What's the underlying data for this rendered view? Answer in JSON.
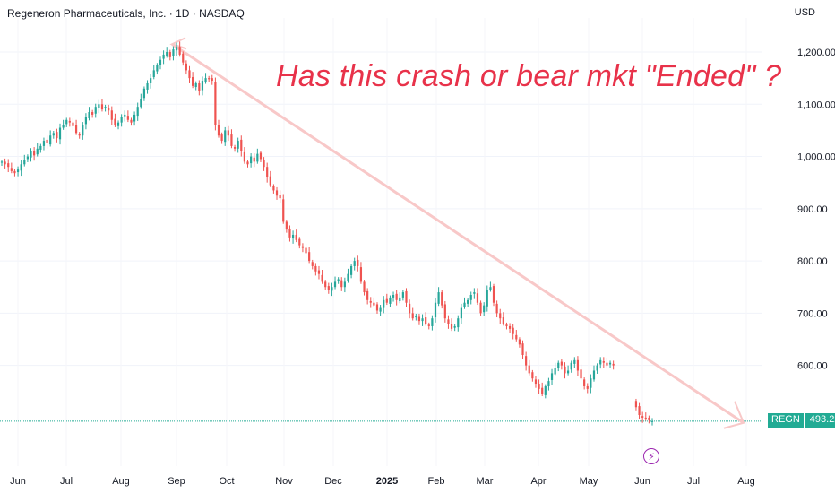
{
  "header": {
    "title": "Regeneron Pharmaceuticals, Inc. · 1D · NASDAQ"
  },
  "currency": "USD",
  "annotation": "Has this crash or bear mkt \"Ended\" ?",
  "ticker_badge": {
    "ticker": "REGN",
    "price": "493.22"
  },
  "event_icon": "flash-icon",
  "colors": {
    "up": "#26a69a",
    "down": "#ef5350",
    "annotation": "#e8324a",
    "trend": "#f8c8c8",
    "last_price": "#22ab94"
  },
  "chart_data": {
    "type": "candlestick",
    "title": "Regeneron Pharmaceuticals, Inc. · 1D · NASDAQ",
    "ylim": [
      465,
      1245
    ],
    "y_ticks": [
      600,
      700,
      800,
      900,
      1000,
      1100,
      1200
    ],
    "y_tick_labels": [
      "600.00",
      "700.00",
      "800.00",
      "900.00",
      "1,000.00",
      "1,100.00",
      "1,200.00"
    ],
    "x_tick_labels": [
      "Jun",
      "Jul",
      "Aug",
      "Sep",
      "Oct",
      "Nov",
      "Dec",
      "2025",
      "Feb",
      "Mar",
      "Apr",
      "May",
      "Jun",
      "Jul",
      "Aug"
    ],
    "grid": true,
    "last_price": 493.22,
    "trendline": [
      {
        "date": "2024-09-04",
        "price": 1215
      },
      {
        "date": "2025-08-15",
        "price": 490
      }
    ],
    "closes": [
      990,
      985,
      980,
      972,
      968,
      975,
      985,
      993,
      1000,
      1010,
      1002,
      1015,
      1020,
      1030,
      1025,
      1040,
      1045,
      1035,
      1055,
      1060,
      1070,
      1065,
      1058,
      1045,
      1040,
      1060,
      1075,
      1085,
      1080,
      1095,
      1100,
      1090,
      1095,
      1088,
      1070,
      1060,
      1065,
      1075,
      1080,
      1070,
      1065,
      1080,
      1095,
      1110,
      1130,
      1140,
      1150,
      1165,
      1175,
      1185,
      1195,
      1200,
      1190,
      1205,
      1210,
      1195,
      1180,
      1165,
      1150,
      1135,
      1140,
      1125,
      1145,
      1150,
      1148,
      1145,
      1060,
      1040,
      1030,
      1050,
      1040,
      1020,
      1015,
      1030,
      1010,
      990,
      985,
      1000,
      990,
      1005,
      995,
      980,
      960,
      945,
      935,
      925,
      920,
      875,
      860,
      845,
      850,
      840,
      830,
      825,
      815,
      800,
      790,
      780,
      775,
      760,
      750,
      745,
      750,
      760,
      765,
      750,
      760,
      775,
      790,
      800,
      790,
      760,
      740,
      725,
      720,
      715,
      705,
      710,
      725,
      720,
      730,
      735,
      725,
      730,
      740,
      720,
      700,
      690,
      695,
      685,
      690,
      680,
      675,
      690,
      720,
      740,
      715,
      690,
      680,
      670,
      675,
      690,
      710,
      720,
      725,
      735,
      740,
      720,
      700,
      715,
      745,
      750,
      720,
      700,
      690,
      680,
      675,
      670,
      660,
      650,
      640,
      620,
      600,
      585,
      575,
      565,
      555,
      545,
      560,
      570,
      585,
      595,
      605,
      600,
      585,
      590,
      605,
      610,
      590,
      575,
      560,
      555,
      575,
      590,
      600,
      610,
      605,
      600,
      605,
      600,
      null,
      null,
      null,
      null,
      null,
      null,
      520,
      505,
      500,
      498,
      495,
      493.22
    ]
  }
}
